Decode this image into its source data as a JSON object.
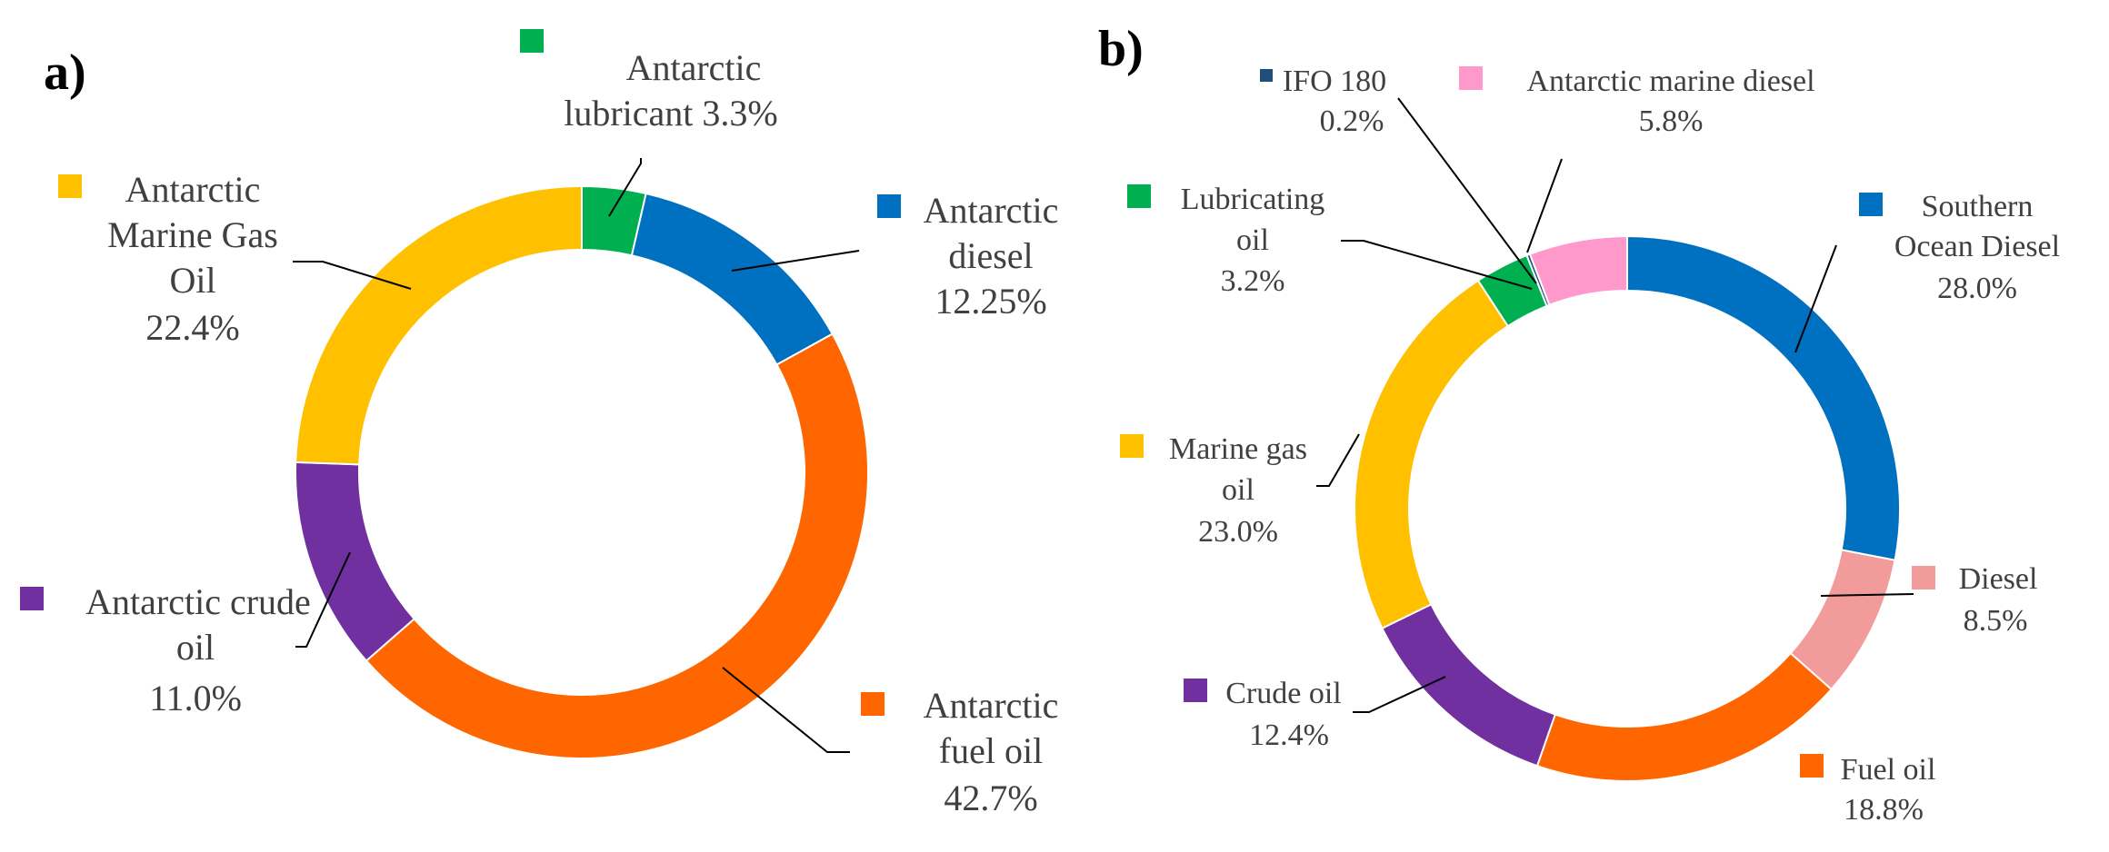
{
  "chart_data": [
    {
      "type": "pie",
      "variant": "donut",
      "panel_label": "a)",
      "title": "",
      "slices": [
        {
          "label": "Antarctic lubricant",
          "value": 3.3,
          "value_text": "3.3%",
          "color": "#00b050"
        },
        {
          "label": "Antarctic diesel",
          "value": 12.25,
          "value_text": "12.25%",
          "color": "#0070c0"
        },
        {
          "label": "Antarctic fuel oil",
          "value": 42.7,
          "value_text": "42.7%",
          "color": "#ff6600"
        },
        {
          "label": "Antarctic crude oil",
          "value": 11.0,
          "value_text": "11.0%",
          "color": "#7030a0"
        },
        {
          "label": "Antarctic Marine Gas Oil",
          "value": 22.4,
          "value_text": "22.4%",
          "color": "#ffc000"
        }
      ]
    },
    {
      "type": "pie",
      "variant": "donut",
      "panel_label": "b)",
      "title": "",
      "slices": [
        {
          "label": "Southern Ocean Diesel",
          "value": 28.0,
          "value_text": "28.0%",
          "color": "#0070c0"
        },
        {
          "label": "Diesel",
          "value": 8.5,
          "value_text": "8.5%",
          "color": "#f29b9b"
        },
        {
          "label": "Fuel oil",
          "value": 18.8,
          "value_text": "18.8%",
          "color": "#ff6600"
        },
        {
          "label": "Crude oil",
          "value": 12.4,
          "value_text": "12.4%",
          "color": "#7030a0"
        },
        {
          "label": "Marine gas oil",
          "value": 23.0,
          "value_text": "23.0%",
          "color": "#ffc000"
        },
        {
          "label": "Lubricating oil",
          "value": 3.2,
          "value_text": "3.2%",
          "color": "#00b050"
        },
        {
          "label": "IFO 180",
          "value": 0.2,
          "value_text": "0.2%",
          "color": "#1f4e79"
        },
        {
          "label": "Antarctic marine diesel",
          "value": 5.8,
          "value_text": "5.8%",
          "color": "#ff99cc"
        }
      ]
    }
  ],
  "labels": {
    "a": {
      "lubricant": [
        "Antarctic",
        "lubricant 3.3%"
      ],
      "diesel": [
        "Antarctic",
        "diesel",
        "12.25%"
      ],
      "fuel": [
        "Antarctic",
        "fuel oil",
        "42.7%"
      ],
      "crude": [
        "Antarctic crude",
        "oil",
        "11.0%"
      ],
      "mgo": [
        "Antarctic",
        "Marine Gas",
        "Oil",
        "22.4%"
      ]
    },
    "b": {
      "sod": [
        "Southern",
        "Ocean Diesel",
        "28.0%"
      ],
      "diesel": [
        "Diesel",
        "8.5%"
      ],
      "fuel": [
        "Fuel oil",
        "18.8%"
      ],
      "crude": [
        "Crude oil",
        "12.4%"
      ],
      "mgo": [
        "Marine gas",
        "oil",
        "23.0%"
      ],
      "lub": [
        "Lubricating",
        "oil",
        "3.2%"
      ],
      "ifo": [
        "IFO 180",
        "0.2%"
      ],
      "amd": [
        "Antarctic marine diesel",
        "5.8%"
      ]
    }
  }
}
